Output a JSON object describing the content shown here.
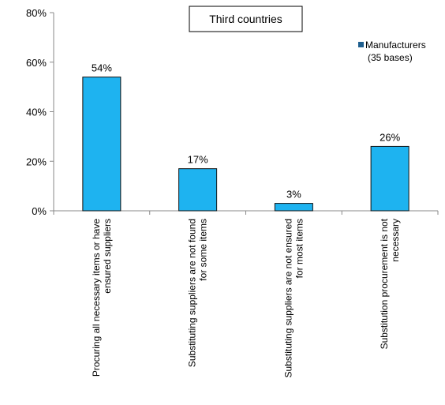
{
  "chart_data": {
    "type": "bar",
    "title": "Third countries",
    "categories": [
      [
        "Procuring all necessary items or have",
        "ensured suppliers"
      ],
      [
        "Substituting suppliers are not found",
        "for some items"
      ],
      [
        "Substituting suppliers are not ensured",
        "for most items"
      ],
      [
        "Substitution procurement is not",
        "necessary"
      ]
    ],
    "series": [
      {
        "name": "Manufacturers (35 bases)",
        "legend_lines": [
          "Manufacturers",
          "(35 bases)"
        ],
        "values": [
          54,
          17,
          3,
          26
        ],
        "data_labels": [
          "54%",
          "17%",
          "3%",
          "26%"
        ],
        "color": "#1eb3f0"
      }
    ],
    "ylim": [
      0,
      80
    ],
    "yticks": [
      0,
      20,
      40,
      60,
      80
    ],
    "ytick_labels": [
      "0%",
      "20%",
      "40%",
      "60%",
      "80%"
    ],
    "grid": false,
    "legend_position": "top-right"
  },
  "colors": {
    "bar_fill": "#1eb3f0",
    "bar_stroke": "#111111",
    "legend_swatch": "#1f5f8f",
    "axis": "#888888"
  }
}
